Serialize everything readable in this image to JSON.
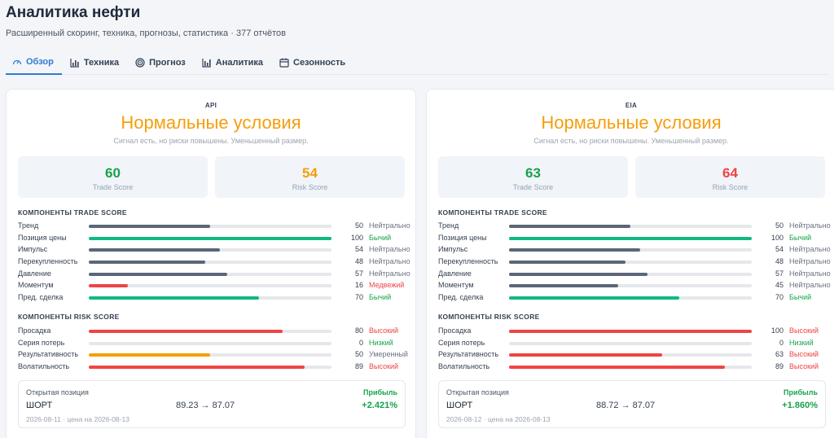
{
  "header": {
    "title": "Аналитика нефти",
    "subtitle": "Расширенный скоринг, техника, прогнозы, статистика · 377 отчётов"
  },
  "tabs": [
    {
      "label": "Обзор",
      "icon": "gauge-icon",
      "active": true
    },
    {
      "label": "Техника",
      "icon": "chart-bars-icon",
      "active": false
    },
    {
      "label": "Прогноз",
      "icon": "target-icon",
      "active": false
    },
    {
      "label": "Аналитика",
      "icon": "bar-chart-icon",
      "active": false
    },
    {
      "label": "Сезонность",
      "icon": "calendar-icon",
      "active": false
    }
  ],
  "colors": {
    "accent": "#2f7bd3",
    "green": "#16a34a",
    "red": "#ef4444",
    "orange": "#f59e0b",
    "neutral_bar": "#5b6678",
    "bullish_bar": "#10b981"
  },
  "cards": [
    {
      "source": "API",
      "condition": "Нормальные условия",
      "note": "Сигнал есть, но риски повышены. Уменьшенный размер.",
      "trade_score": {
        "value": "60",
        "label": "Trade Score",
        "color": "#16a34a"
      },
      "risk_score": {
        "value": "54",
        "label": "Risk Score",
        "color": "#f59e0b"
      },
      "trade_heading": "КОМПОНЕНТЫ TRADE SCORE",
      "trade_components": [
        {
          "name": "Тренд",
          "value": "50",
          "level": 50,
          "status": "Нейтрально",
          "color": "#5b6678",
          "status_color": "#6b7280"
        },
        {
          "name": "Позиция цены",
          "value": "100",
          "level": 100,
          "status": "Бычий",
          "color": "#10b981",
          "status_color": "#16a34a"
        },
        {
          "name": "Импульс",
          "value": "54",
          "level": 54,
          "status": "Нейтрально",
          "color": "#5b6678",
          "status_color": "#6b7280"
        },
        {
          "name": "Перекупленность",
          "value": "48",
          "level": 48,
          "status": "Нейтрально",
          "color": "#5b6678",
          "status_color": "#6b7280"
        },
        {
          "name": "Давление",
          "value": "57",
          "level": 57,
          "status": "Нейтрально",
          "color": "#5b6678",
          "status_color": "#6b7280"
        },
        {
          "name": "Моментум",
          "value": "16",
          "level": 16,
          "status": "Медвежий",
          "color": "#ef4444",
          "status_color": "#ef4444"
        },
        {
          "name": "Пред. сделка",
          "value": "70",
          "level": 70,
          "status": "Бычий",
          "color": "#10b981",
          "status_color": "#16a34a"
        }
      ],
      "risk_heading": "КОМПОНЕНТЫ RISK SCORE",
      "risk_components": [
        {
          "name": "Просадка",
          "value": "80",
          "level": 80,
          "status": "Высокий",
          "color": "#ef4444",
          "status_color": "#ef4444"
        },
        {
          "name": "Серия потерь",
          "value": "0",
          "level": 0,
          "status": "Низкий",
          "color": "#10b981",
          "status_color": "#16a34a"
        },
        {
          "name": "Результативность",
          "value": "50",
          "level": 50,
          "status": "Умеренный",
          "color": "#f59e0b",
          "status_color": "#6b7280"
        },
        {
          "name": "Волатильность",
          "value": "89",
          "level": 89,
          "status": "Высокий",
          "color": "#ef4444",
          "status_color": "#ef4444"
        }
      ],
      "position": {
        "label": "Открытая позиция",
        "result_label": "Прибыль",
        "direction": "ШОРТ",
        "prices": "89.23 → 87.07",
        "pct": "+2.421%",
        "date": "2026-08-11 · цена на 2026-08-13"
      }
    },
    {
      "source": "EIA",
      "condition": "Нормальные условия",
      "note": "Сигнал есть, но риски повышены. Уменьшенный размер.",
      "trade_score": {
        "value": "63",
        "label": "Trade Score",
        "color": "#16a34a"
      },
      "risk_score": {
        "value": "64",
        "label": "Risk Score",
        "color": "#ef4444"
      },
      "trade_heading": "КОМПОНЕНТЫ TRADE SCORE",
      "trade_components": [
        {
          "name": "Тренд",
          "value": "50",
          "level": 50,
          "status": "Нейтрально",
          "color": "#5b6678",
          "status_color": "#6b7280"
        },
        {
          "name": "Позиция цены",
          "value": "100",
          "level": 100,
          "status": "Бычий",
          "color": "#10b981",
          "status_color": "#16a34a"
        },
        {
          "name": "Импульс",
          "value": "54",
          "level": 54,
          "status": "Нейтрально",
          "color": "#5b6678",
          "status_color": "#6b7280"
        },
        {
          "name": "Перекупленность",
          "value": "48",
          "level": 48,
          "status": "Нейтрально",
          "color": "#5b6678",
          "status_color": "#6b7280"
        },
        {
          "name": "Давление",
          "value": "57",
          "level": 57,
          "status": "Нейтрально",
          "color": "#5b6678",
          "status_color": "#6b7280"
        },
        {
          "name": "Моментум",
          "value": "45",
          "level": 45,
          "status": "Нейтрально",
          "color": "#5b6678",
          "status_color": "#6b7280"
        },
        {
          "name": "Пред. сделка",
          "value": "70",
          "level": 70,
          "status": "Бычий",
          "color": "#10b981",
          "status_color": "#16a34a"
        }
      ],
      "risk_heading": "КОМПОНЕНТЫ RISK SCORE",
      "risk_components": [
        {
          "name": "Просадка",
          "value": "100",
          "level": 100,
          "status": "Высокий",
          "color": "#ef4444",
          "status_color": "#ef4444"
        },
        {
          "name": "Серия потерь",
          "value": "0",
          "level": 0,
          "status": "Низкий",
          "color": "#10b981",
          "status_color": "#16a34a"
        },
        {
          "name": "Результативность",
          "value": "63",
          "level": 63,
          "status": "Высокий",
          "color": "#ef4444",
          "status_color": "#ef4444"
        },
        {
          "name": "Волатильность",
          "value": "89",
          "level": 89,
          "status": "Высокий",
          "color": "#ef4444",
          "status_color": "#ef4444"
        }
      ],
      "position": {
        "label": "Открытая позиция",
        "result_label": "Прибыль",
        "direction": "ШОРТ",
        "prices": "88.72 → 87.07",
        "pct": "+1.860%",
        "date": "2026-08-12 · цена на 2026-08-13"
      }
    }
  ]
}
